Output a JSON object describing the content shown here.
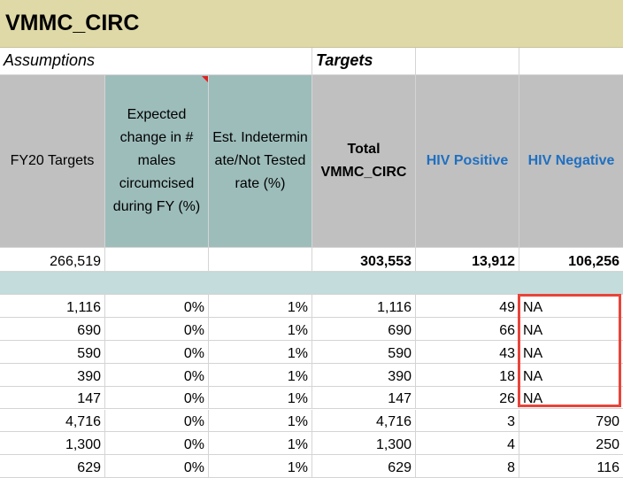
{
  "sheet_title": "VMMC_CIRC",
  "assumptions_label": "Assumptions",
  "targets_label": "Targets",
  "headers": [
    "FY20 Targets",
    "Expected change in # males circumcised during FY (%)",
    "Est. Indeterminate/Not Tested rate (%)",
    "Total VMMC_CIRC",
    "HIV Positive",
    "HIV Negative"
  ],
  "totals": [
    "266,519",
    "",
    "",
    "303,553",
    "13,912",
    "106,256"
  ],
  "rows": [
    [
      "1,116",
      "0%",
      "1%",
      "1,116",
      "49",
      "NA"
    ],
    [
      "690",
      "0%",
      "1%",
      "690",
      "66",
      "NA"
    ],
    [
      "590",
      "0%",
      "1%",
      "590",
      "43",
      "NA"
    ],
    [
      "390",
      "0%",
      "1%",
      "390",
      "18",
      "NA"
    ],
    [
      "147",
      "0%",
      "1%",
      "147",
      "26",
      "NA"
    ],
    [
      "4,716",
      "0%",
      "1%",
      "4,716",
      "3",
      "790"
    ],
    [
      "1,300",
      "0%",
      "1%",
      "1,300",
      "4",
      "250"
    ],
    [
      "629",
      "0%",
      "1%",
      "629",
      "8",
      "116"
    ]
  ],
  "colors": {
    "title_bg": "#ded9a6",
    "header_gray": "#c0c0c0",
    "header_teal": "#9dbdbb",
    "band": "#c4dcdb",
    "link_blue": "#1f6fc1",
    "highlight_red": "#e8443a"
  }
}
